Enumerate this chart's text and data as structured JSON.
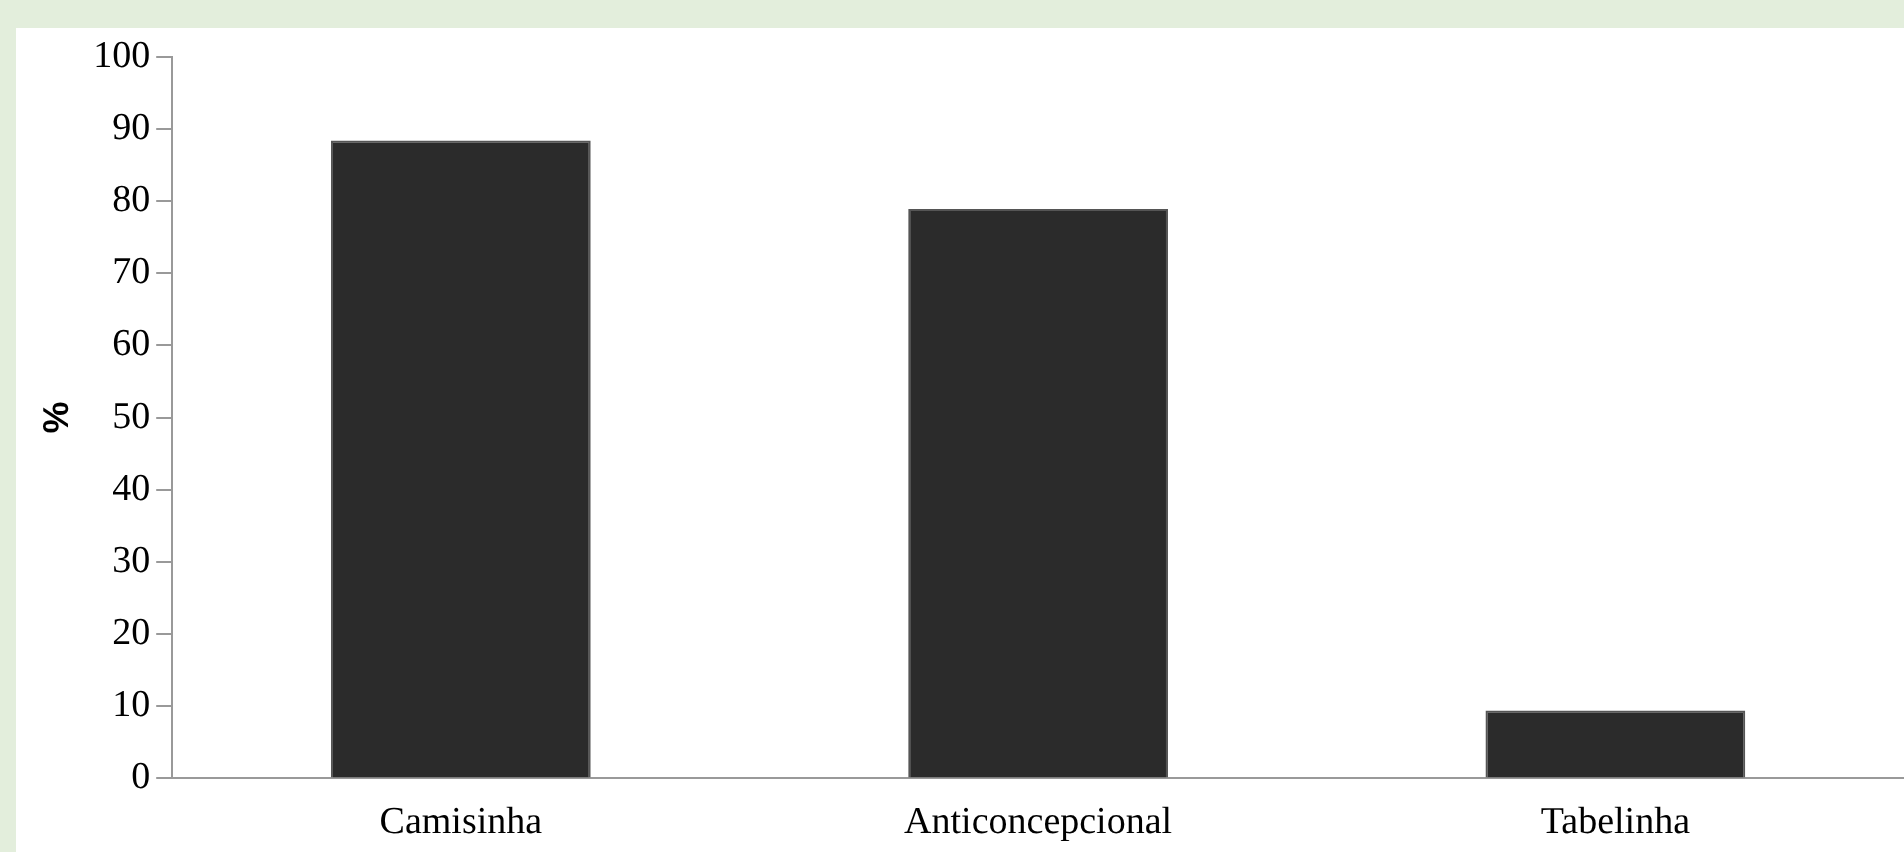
{
  "chart_data": {
    "type": "bar",
    "ylabel": "%",
    "categories": [
      "Camisinha",
      "Anticoncepcional",
      "Tabelinha"
    ],
    "values": [
      88.4,
      78.9,
      9.4
    ],
    "color": "#2b2b2b",
    "ylim": [
      0,
      100
    ],
    "yticks": [
      0,
      10,
      20,
      30,
      40,
      50,
      60,
      70,
      80,
      90,
      100
    ],
    "grid": false,
    "legend": false
  }
}
